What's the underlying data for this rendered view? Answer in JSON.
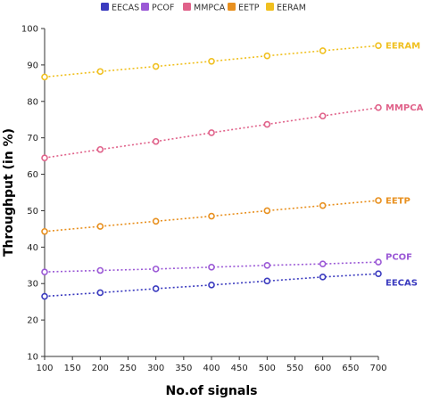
{
  "chart_data": {
    "type": "line",
    "xlabel": "No.of signals",
    "ylabel": "Throughput (in %)",
    "x": [
      100,
      200,
      300,
      400,
      500,
      600,
      700
    ],
    "xlim": [
      100,
      700
    ],
    "ylim": [
      10,
      100
    ],
    "xticks": [
      "100",
      "150",
      "200",
      "250",
      "300",
      "350",
      "400",
      "450",
      "500",
      "550",
      "600",
      "650",
      "700"
    ],
    "yticks": [
      "10",
      "20",
      "30",
      "40",
      "50",
      "60",
      "70",
      "80",
      "90",
      "100"
    ],
    "grid": false,
    "legend_position": "top",
    "series": [
      {
        "name": "EECAS",
        "color": "#3b3bbf",
        "values": [
          26.5,
          27.5,
          28.6,
          29.6,
          30.7,
          31.8,
          32.7
        ]
      },
      {
        "name": "PCOF",
        "color": "#9b59d6",
        "values": [
          33.2,
          33.6,
          34.0,
          34.5,
          35.0,
          35.4,
          35.9
        ]
      },
      {
        "name": "MMPCA",
        "color": "#e0628a",
        "values": [
          64.5,
          66.8,
          69.0,
          71.4,
          73.7,
          76.0,
          78.3
        ]
      },
      {
        "name": "EETP",
        "color": "#e8901f",
        "values": [
          44.3,
          45.7,
          47.1,
          48.5,
          50.0,
          51.4,
          52.8
        ]
      },
      {
        "name": "EERAM",
        "color": "#f0c020",
        "values": [
          86.7,
          88.2,
          89.6,
          91.0,
          92.5,
          93.9,
          95.3
        ]
      }
    ]
  }
}
